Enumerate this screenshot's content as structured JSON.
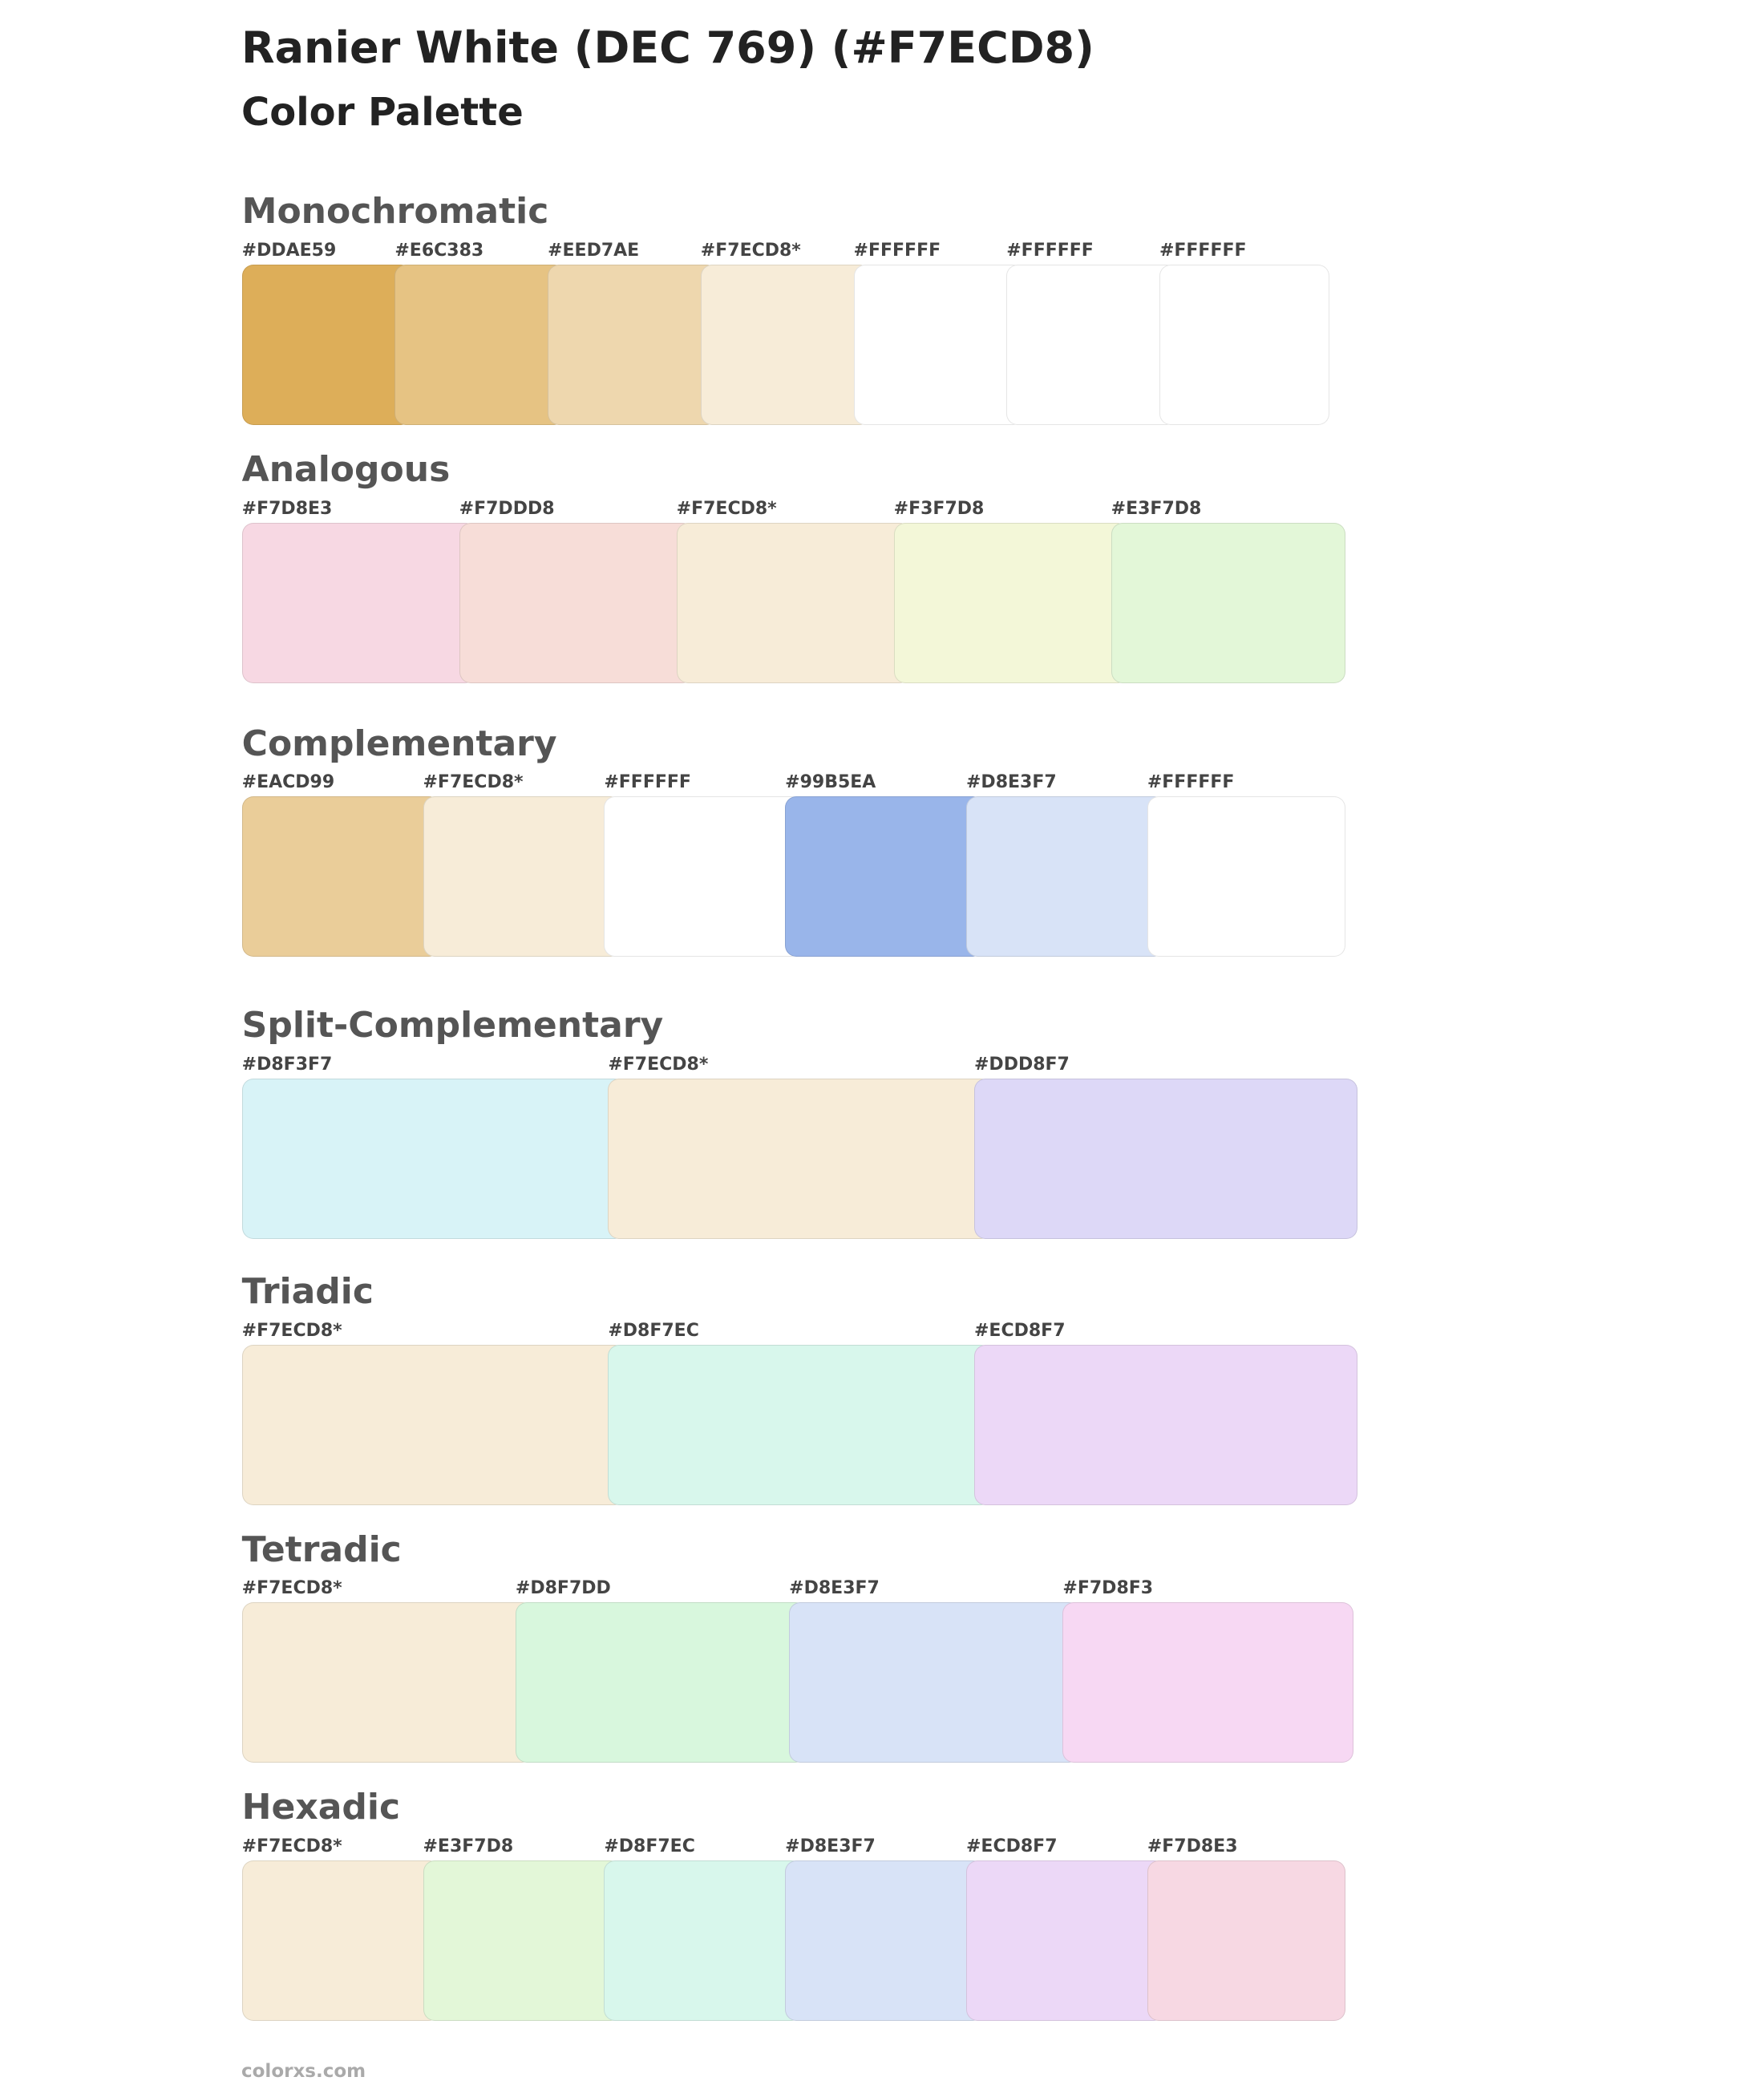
{
  "header": {
    "title": "Ranier White (DEC 769) (#F7ECD8)",
    "subtitle": "Color Palette"
  },
  "sections": [
    {
      "name": "Monochromatic",
      "swatches": [
        {
          "label": "#DDAE59",
          "color": "#DDAE59"
        },
        {
          "label": "#E6C383",
          "color": "#E6C383"
        },
        {
          "label": "#EED7AE",
          "color": "#EED7AE"
        },
        {
          "label": "#F7ECD8*",
          "color": "#F7ECD8"
        },
        {
          "label": "#FFFFFF",
          "color": "#FFFFFF"
        },
        {
          "label": "#FFFFFF",
          "color": "#FFFFFF"
        },
        {
          "label": "#FFFFFF",
          "color": "#FFFFFF"
        }
      ]
    },
    {
      "name": "Analogous",
      "swatches": [
        {
          "label": "#F7D8E3",
          "color": "#F7D8E3"
        },
        {
          "label": "#F7DDD8",
          "color": "#F7DDD8"
        },
        {
          "label": "#F7ECD8*",
          "color": "#F7ECD8"
        },
        {
          "label": "#F3F7D8",
          "color": "#F3F7D8"
        },
        {
          "label": "#E3F7D8",
          "color": "#E3F7D8"
        }
      ]
    },
    {
      "name": "Complementary",
      "swatches": [
        {
          "label": "#EACD99",
          "color": "#EACD99"
        },
        {
          "label": "#F7ECD8*",
          "color": "#F7ECD8"
        },
        {
          "label": "#FFFFFF",
          "color": "#FFFFFF"
        },
        {
          "label": "#99B5EA",
          "color": "#99B5EA"
        },
        {
          "label": "#D8E3F7",
          "color": "#D8E3F7"
        },
        {
          "label": "#FFFFFF",
          "color": "#FFFFFF"
        }
      ]
    },
    {
      "name": "Split-Complementary",
      "swatches": [
        {
          "label": "#D8F3F7",
          "color": "#D8F3F7"
        },
        {
          "label": "#F7ECD8*",
          "color": "#F7ECD8"
        },
        {
          "label": "#DDD8F7",
          "color": "#DDD8F7"
        }
      ]
    },
    {
      "name": "Triadic",
      "swatches": [
        {
          "label": "#F7ECD8*",
          "color": "#F7ECD8"
        },
        {
          "label": "#D8F7EC",
          "color": "#D8F7EC"
        },
        {
          "label": "#ECD8F7",
          "color": "#ECD8F7"
        }
      ]
    },
    {
      "name": "Tetradic",
      "swatches": [
        {
          "label": "#F7ECD8*",
          "color": "#F7ECD8"
        },
        {
          "label": "#D8F7DD",
          "color": "#D8F7DD"
        },
        {
          "label": "#D8E3F7",
          "color": "#D8E3F7"
        },
        {
          "label": "#F7D8F3",
          "color": "#F7D8F3"
        }
      ]
    },
    {
      "name": "Hexadic",
      "swatches": [
        {
          "label": "#F7ECD8*",
          "color": "#F7ECD8"
        },
        {
          "label": "#E3F7D8",
          "color": "#E3F7D8"
        },
        {
          "label": "#D8F7EC",
          "color": "#D8F7EC"
        },
        {
          "label": "#D8E3F7",
          "color": "#D8E3F7"
        },
        {
          "label": "#ECD8F7",
          "color": "#ECD8F7"
        },
        {
          "label": "#F7D8E3",
          "color": "#F7D8E3"
        }
      ]
    }
  ],
  "footer": "colorxs.com"
}
